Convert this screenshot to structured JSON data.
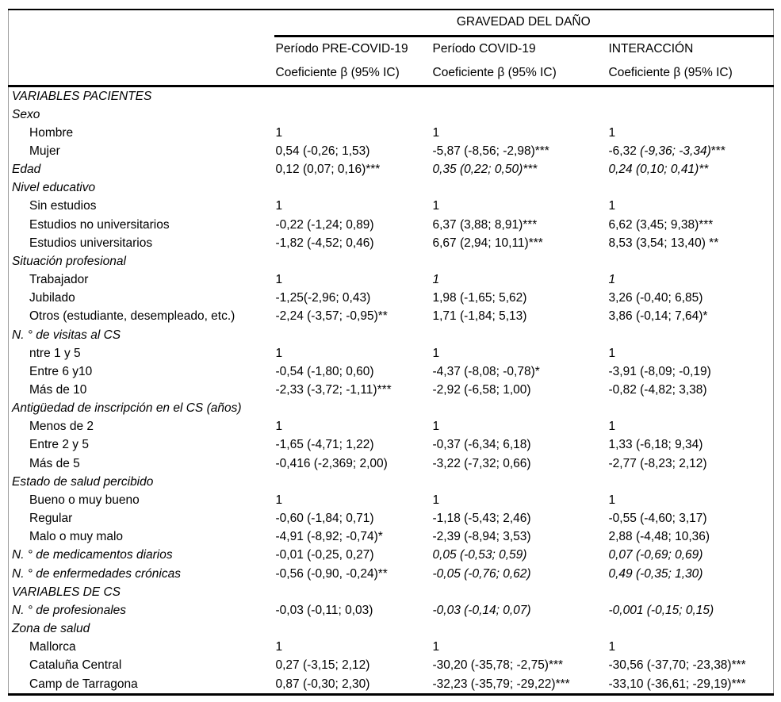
{
  "table": {
    "spanner": "GRAVEDAD DEL DAÑO",
    "columns": [
      {
        "period": "Período PRE-COVID-19",
        "measure": "Coeficiente β (95% IC)"
      },
      {
        "period": "Período COVID-19",
        "measure": "Coeficiente β (95% IC)"
      },
      {
        "period": "INTERACCIÓN",
        "measure": "Coeficiente β (95% IC)"
      }
    ],
    "rows": [
      {
        "label": "VARIABLES PACIENTES",
        "type": "section",
        "cells": [
          "",
          "",
          ""
        ]
      },
      {
        "label": "Sexo",
        "type": "section",
        "cells": [
          "",
          "",
          ""
        ]
      },
      {
        "label": "Hombre",
        "type": "item",
        "cells": [
          "1",
          "1",
          "1"
        ]
      },
      {
        "label": "Mujer",
        "type": "item",
        "cells": [
          "0,54 (-0,26; 1,53)",
          "-5,87 (-8,56; -2,98)***",
          {
            "parts": [
              {
                "t": "-6,32 ",
                "i": false
              },
              {
                "t": "(-9,36; -3,34)",
                "i": true
              },
              {
                "t": "***",
                "i": false
              }
            ]
          }
        ]
      },
      {
        "label": "Edad",
        "type": "section",
        "cells": [
          "0,12 (0,07; 0,16)***",
          {
            "t": "0,35 (0,22; 0,50)***",
            "i": true
          },
          {
            "t": "0,24 (0,10; 0,41)**",
            "i": true
          }
        ]
      },
      {
        "label": "Nivel educativo",
        "type": "section",
        "cells": [
          "",
          "",
          ""
        ]
      },
      {
        "label": "Sin estudios",
        "type": "item",
        "cells": [
          "1",
          "1",
          "1"
        ]
      },
      {
        "label": "Estudios no universitarios",
        "type": "item",
        "cells": [
          "-0,22 (-1,24; 0,89)",
          "6,37 (3,88; 8,91)***",
          "6,62 (3,45; 9,38)***"
        ]
      },
      {
        "label": "Estudios universitarios",
        "type": "item",
        "cells": [
          "-1,82 (-4,52; 0,46)",
          "6,67 (2,94; 10,11)***",
          "8,53 (3,54; 13,40) **"
        ]
      },
      {
        "label": "Situación profesional",
        "type": "section",
        "cells": [
          "",
          "",
          ""
        ]
      },
      {
        "label": "Trabajador",
        "type": "item",
        "cells": [
          "1",
          {
            "t": "1",
            "i": true
          },
          {
            "t": "1",
            "i": true
          }
        ]
      },
      {
        "label": "Jubilado",
        "type": "item",
        "cells": [
          "-1,25(-2,96; 0,43)",
          "1,98 (-1,65; 5,62)",
          "3,26 (-0,40; 6,85)"
        ]
      },
      {
        "label": "Otros (estudiante, desempleado, etc.)",
        "type": "item",
        "cells": [
          "-2,24 (-3,57; -0,95)**",
          "1,71 (-1,84; 5,13)",
          "3,86 (-0,14; 7,64)*"
        ]
      },
      {
        "label": "N. ° de visitas al CS",
        "type": "section",
        "cells": [
          "",
          "",
          ""
        ]
      },
      {
        "label": "ntre 1 y 5",
        "type": "item",
        "cells": [
          "1",
          "1",
          "1"
        ]
      },
      {
        "label": "Entre 6 y10",
        "type": "item",
        "cells": [
          "-0,54 (-1,80; 0,60)",
          "-4,37 (-8,08; -0,78)*",
          "-3,91 (-8,09; -0,19)"
        ]
      },
      {
        "label": "Más de 10",
        "type": "item",
        "cells": [
          "-2,33 (-3,72; -1,11)***",
          "-2,92 (-6,58; 1,00)",
          "-0,82 (-4,82; 3,38)"
        ]
      },
      {
        "label": "Antigüedad de inscripción en el CS (años)",
        "type": "section",
        "cells": [
          "",
          "",
          ""
        ]
      },
      {
        "label": "Menos de 2",
        "type": "item",
        "cells": [
          "1",
          "1",
          "1"
        ]
      },
      {
        "label": "Entre 2 y 5",
        "type": "item",
        "cells": [
          "-1,65 (-4,71; 1,22)",
          "-0,37 (-6,34; 6,18)",
          "1,33 (-6,18; 9,34)"
        ]
      },
      {
        "label": "Más de 5",
        "type": "item",
        "cells": [
          "-0,416 (-2,369; 2,00)",
          "-3,22 (-7,32; 0,66)",
          "-2,77 (-8,23; 2,12)"
        ]
      },
      {
        "label": "Estado de salud percibido",
        "type": "section",
        "cells": [
          "",
          "",
          ""
        ]
      },
      {
        "label": "Bueno o muy bueno",
        "type": "item",
        "cells": [
          "1",
          "1",
          "1"
        ]
      },
      {
        "label": "Regular",
        "type": "item",
        "cells": [
          "-0,60 (-1,84; 0,71)",
          "-1,18 (-5,43; 2,46)",
          "-0,55 (-4,60; 3,17)"
        ]
      },
      {
        "label": "Malo o muy malo",
        "type": "item",
        "cells": [
          "-4,91 (-8,92; -0,74)*",
          "-2,39 (-8,94; 3,53)",
          "2,88 (-4,48; 10,36)"
        ]
      },
      {
        "label": "N. ° de medicamentos diarios",
        "type": "section",
        "cells": [
          "-0,01 (-0,25, 0,27)",
          {
            "t": "0,05 (-0,53; 0,59)",
            "i": true
          },
          {
            "t": "0,07 (-0,69; 0,69)",
            "i": true
          }
        ]
      },
      {
        "label": "N. ° de enfermedades crónicas",
        "type": "section",
        "cells": [
          "-0,56 (-0,90, -0,24)**",
          {
            "t": "-0,05 (-0,76; 0,62)",
            "i": true
          },
          {
            "t": "0,49 (-0,35; 1,30)",
            "i": true
          }
        ]
      },
      {
        "label": "VARIABLES DE CS",
        "type": "section",
        "cells": [
          "",
          "",
          ""
        ]
      },
      {
        "label": "N. ° de profesionales",
        "type": "section",
        "cells": [
          "-0,03 (-0,11; 0,03)",
          {
            "t": "-0,03 (-0,14; 0,07)",
            "i": true
          },
          {
            "t": "-0,001 (-0,15; 0,15)",
            "i": true
          }
        ]
      },
      {
        "label": "Zona de salud",
        "type": "section",
        "cells": [
          "",
          "",
          ""
        ]
      },
      {
        "label": "Mallorca",
        "type": "item",
        "cells": [
          "1",
          "1",
          "1"
        ]
      },
      {
        "label": "Cataluña Central",
        "type": "item",
        "cells": [
          "0,27 (-3,15; 2,12)",
          "-30,20 (-35,78; -2,75)***",
          "-30,56 (-37,70; -23,38)***"
        ]
      },
      {
        "label": "Camp de Tarragona",
        "type": "item",
        "cells": [
          "0,87 (-0,30; 2,30)",
          "-32,23 (-35,79; -29,22)***",
          "-33,10 (-36,61; -29,19)***"
        ]
      }
    ]
  }
}
